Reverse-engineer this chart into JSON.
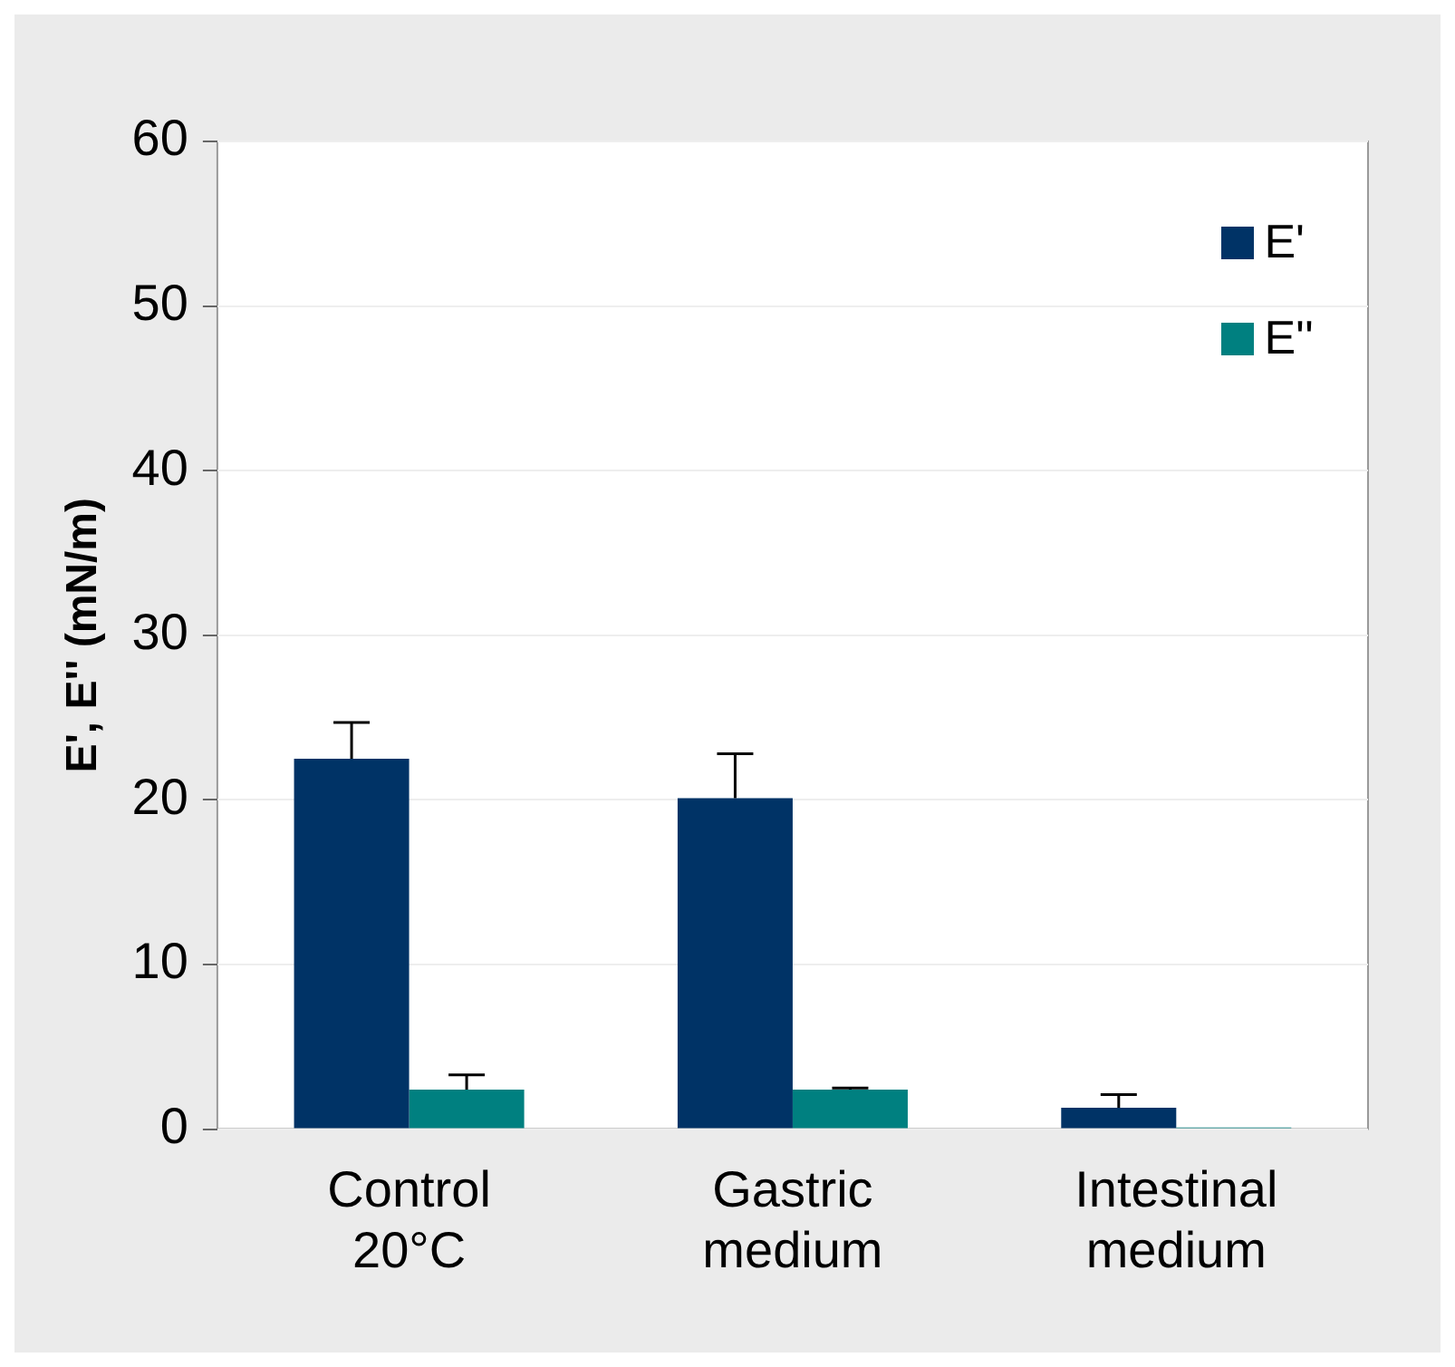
{
  "chart_data": {
    "type": "bar",
    "ylabel": "E', E'' (mN/m)",
    "categories": [
      "Control\n20°C",
      "Gastric\nmedium",
      "Intestinal\nmedium"
    ],
    "series": [
      {
        "name": "E'",
        "color": "#003366",
        "values": [
          22.5,
          20.1,
          1.3
        ],
        "errors": [
          [
            22.5,
            24.7
          ],
          [
            20.1,
            22.8
          ],
          [
            1.3,
            2.1
          ]
        ]
      },
      {
        "name": "E''",
        "color": "#008080",
        "values": [
          2.4,
          2.4,
          0.1
        ],
        "errors": [
          [
            2.4,
            3.3
          ],
          [
            2.4,
            2.5
          ],
          null
        ]
      }
    ],
    "ylim": [
      0,
      60
    ],
    "yticks": [
      0,
      10,
      20,
      30,
      40,
      50,
      60
    ],
    "grid": "y",
    "legend": "top right"
  }
}
